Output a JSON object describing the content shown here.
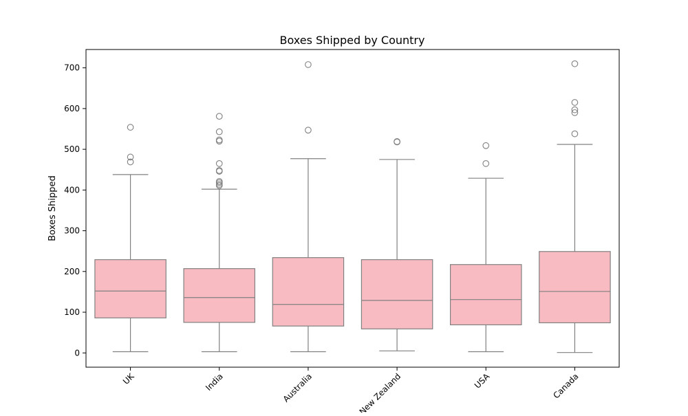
{
  "chart_data": {
    "type": "box",
    "title": "Boxes Shipped by Country",
    "xlabel": "",
    "ylabel": "Boxes Shipped",
    "ylim": [
      -35,
      745
    ],
    "yticks": [
      0,
      100,
      200,
      300,
      400,
      500,
      600,
      700
    ],
    "grid": false,
    "categories": [
      "UK",
      "India",
      "Australia",
      "New Zealand",
      "USA",
      "Canada"
    ],
    "box_fill": "#f8bbc2",
    "line_color": "#808080",
    "boxes": [
      {
        "category": "UK",
        "whisker_low": 3,
        "q1": 86,
        "median": 152,
        "q3": 229,
        "whisker_high": 438,
        "outliers": [
          469,
          481,
          554
        ]
      },
      {
        "category": "India",
        "whisker_low": 3,
        "q1": 75,
        "median": 136,
        "q3": 207,
        "whisker_high": 402,
        "outliers": [
          411,
          414,
          418,
          421,
          446,
          448,
          465,
          520,
          523,
          543,
          581
        ]
      },
      {
        "category": "Australia",
        "whisker_low": 3,
        "q1": 66,
        "median": 119,
        "q3": 234,
        "whisker_high": 477,
        "outliers": [
          547,
          708
        ]
      },
      {
        "category": "New Zealand",
        "whisker_low": 5,
        "q1": 59,
        "median": 129,
        "q3": 229,
        "whisker_high": 475,
        "outliers": [
          518,
          519
        ]
      },
      {
        "category": "USA",
        "whisker_low": 3,
        "q1": 69,
        "median": 131,
        "q3": 217,
        "whisker_high": 429,
        "outliers": [
          465,
          509
        ]
      },
      {
        "category": "Canada",
        "whisker_low": 1,
        "q1": 74,
        "median": 151,
        "q3": 249,
        "whisker_high": 512,
        "outliers": [
          538,
          590,
          597,
          615,
          710
        ]
      }
    ]
  }
}
